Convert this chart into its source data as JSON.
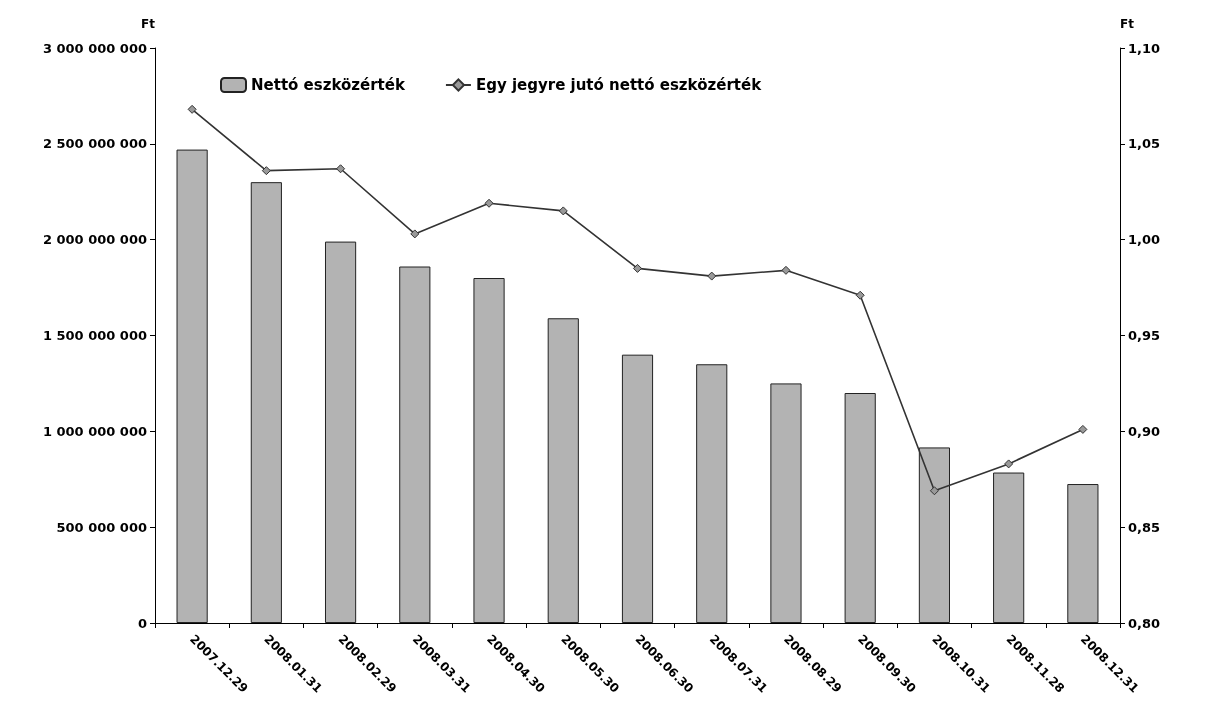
{
  "chart_data": {
    "type": "bar",
    "ylabel": "Ft",
    "y2label": "Ft",
    "categories": [
      "2007.12.29",
      "2008.01.31",
      "2008.02.29",
      "2008.03.31",
      "2008.04.30",
      "2008.05.30",
      "2008.06.30",
      "2008.07.31",
      "2008.08.29",
      "2008.09.30",
      "2008.10.31",
      "2008.11.28",
      "2008.12.31"
    ],
    "series": [
      {
        "name": "Nettó eszközérték",
        "color": "#b3b3b3",
        "values": [
          2470000000,
          2300000000,
          1990000000,
          1860000000,
          1800000000,
          1590000000,
          1400000000,
          1350000000,
          1250000000,
          1200000000,
          916000000,
          785000000,
          725000000
        ]
      },
      {
        "name": "Egy jegyre jutó nettó eszközérték",
        "type": "line",
        "axis": "y2",
        "color": "#333333",
        "marker": "diamond",
        "values": [
          1.068,
          1.036,
          1.037,
          1.003,
          1.019,
          1.015,
          0.985,
          0.981,
          0.984,
          0.971,
          0.869,
          0.883,
          0.901
        ]
      }
    ],
    "ylim": [
      0,
      3000000000
    ],
    "yticks": [
      {
        "value": 0,
        "label": "0"
      },
      {
        "value": 500000000,
        "label": "500 000 000"
      },
      {
        "value": 1000000000,
        "label": "1 000 000 000"
      },
      {
        "value": 1500000000,
        "label": "1 500 000 000"
      },
      {
        "value": 2000000000,
        "label": "2 000 000 000"
      },
      {
        "value": 2500000000,
        "label": "2 500 000 000"
      },
      {
        "value": 3000000000,
        "label": "3 000 000 000"
      }
    ],
    "y2lim": [
      0.8,
      1.1
    ],
    "y2ticks": [
      {
        "value": 0.8,
        "label": "0,80"
      },
      {
        "value": 0.85,
        "label": "0,85"
      },
      {
        "value": 0.9,
        "label": "0,90"
      },
      {
        "value": 0.95,
        "label": "0,95"
      },
      {
        "value": 1.0,
        "label": "1,00"
      },
      {
        "value": 1.05,
        "label": "1,05"
      },
      {
        "value": 1.1,
        "label": "1,10"
      }
    ],
    "grid": false,
    "legend": "top left"
  }
}
